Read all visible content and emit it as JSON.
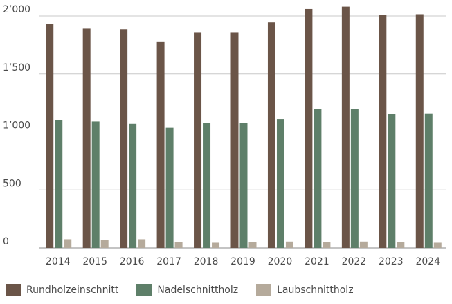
{
  "chart_data": {
    "type": "bar",
    "title": "",
    "xlabel": "",
    "ylabel": "",
    "categories": [
      "2014",
      "2015",
      "2016",
      "2017",
      "2018",
      "2019",
      "2020",
      "2021",
      "2022",
      "2023",
      "2024"
    ],
    "series": [
      {
        "name": "Rundholzeinschnitt",
        "color": "#6b5548",
        "values": [
          1930,
          1890,
          1885,
          1780,
          1860,
          1860,
          1945,
          2060,
          2080,
          2010,
          2015
        ]
      },
      {
        "name": "Nadelschnittholz",
        "color": "#5e7f69",
        "values": [
          1100,
          1090,
          1070,
          1035,
          1080,
          1080,
          1110,
          1200,
          1195,
          1155,
          1160
        ]
      },
      {
        "name": "Laubschnittholz",
        "color": "#b5aa9b",
        "values": [
          75,
          70,
          75,
          50,
          45,
          50,
          55,
          50,
          55,
          50,
          45
        ]
      }
    ],
    "yticks": [
      0,
      500,
      1000,
      1500,
      2000
    ],
    "ytick_labels": [
      "0",
      "500",
      "1’000",
      "1’500",
      "2’000"
    ],
    "ylim": [
      0,
      2100
    ],
    "grid": true,
    "legend_position": "bottom-left"
  }
}
